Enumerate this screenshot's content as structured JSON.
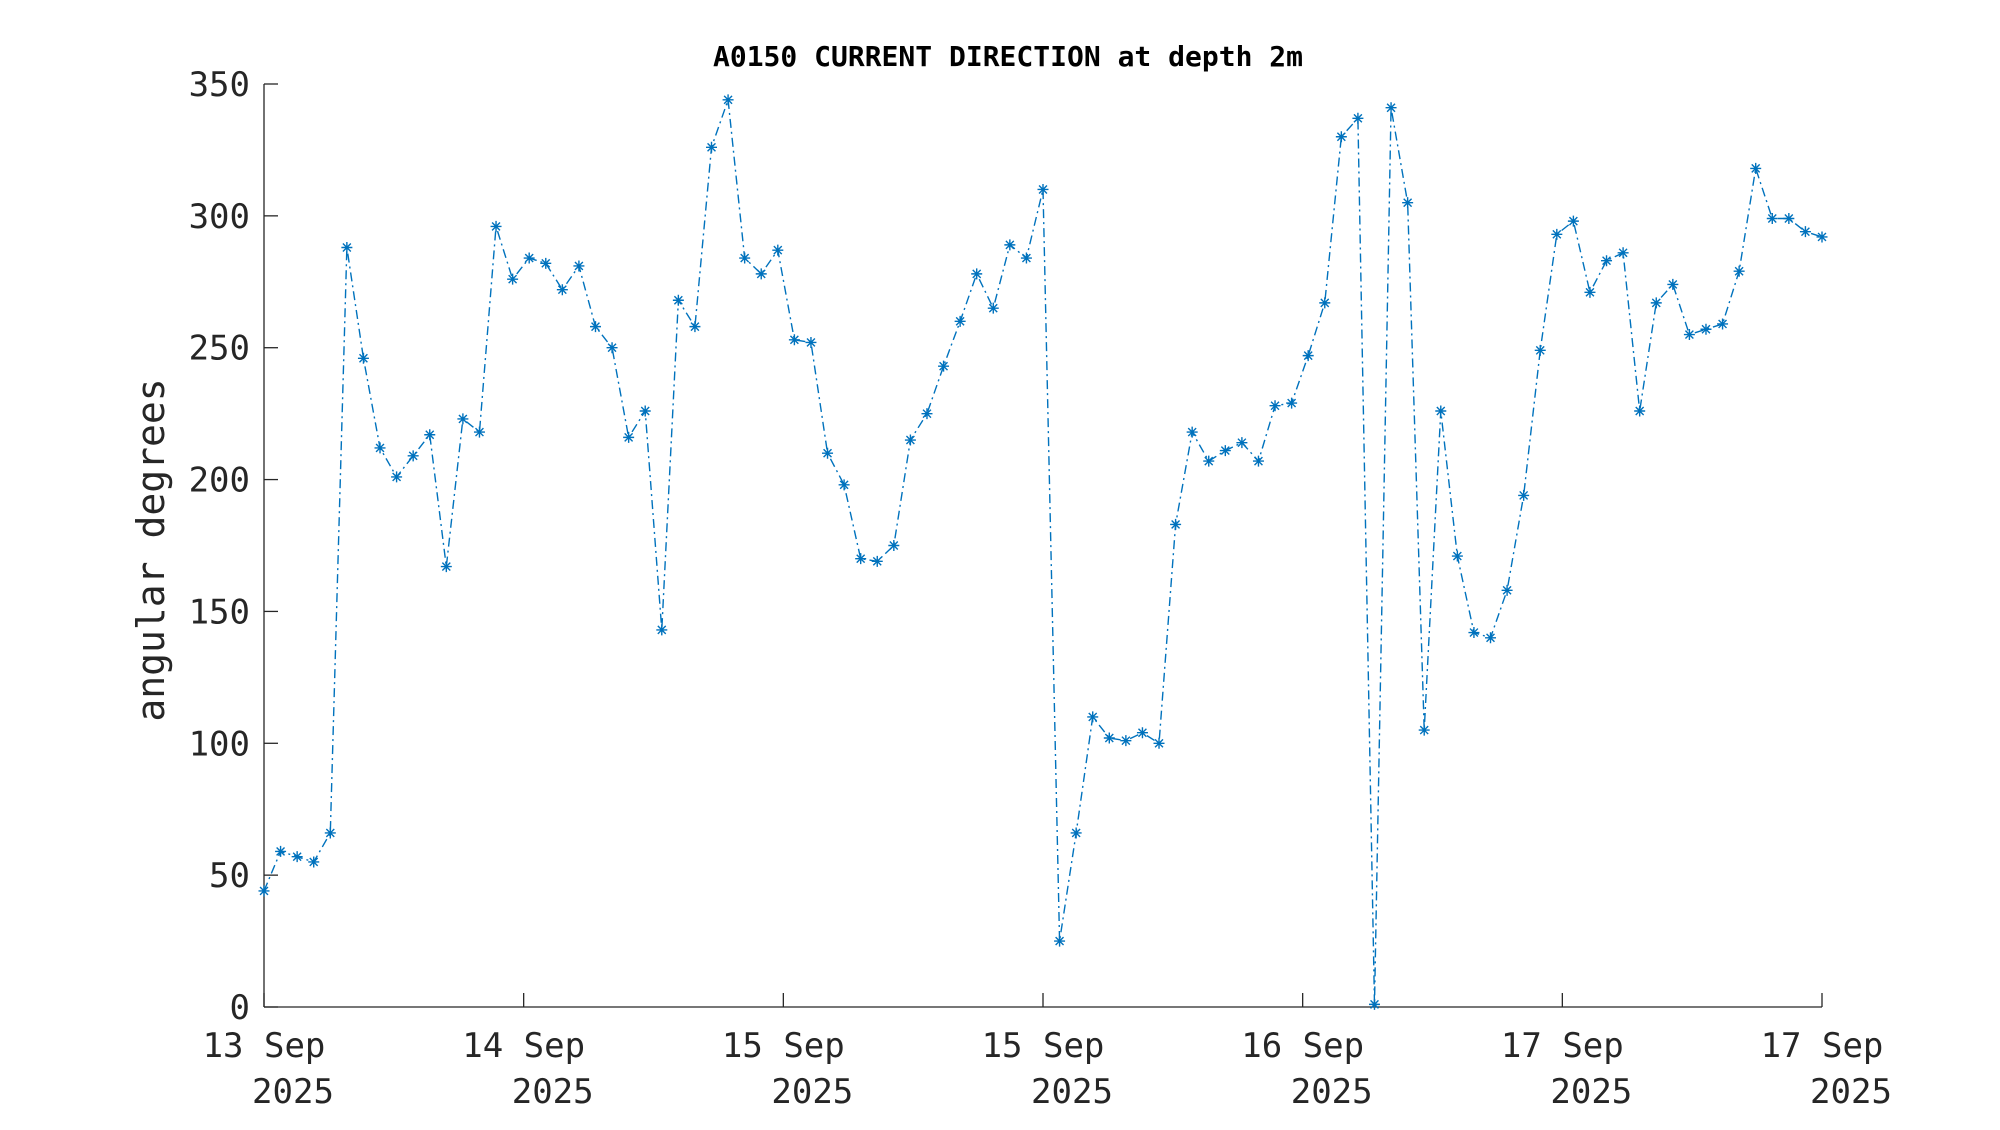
{
  "chart_data": {
    "type": "line",
    "title": "A0150 CURRENT DIRECTION at depth 2m",
    "xlabel": "",
    "ylabel": "angular degrees",
    "ylim": [
      0,
      350
    ],
    "yticks": [
      "0",
      "50",
      "100",
      "150",
      "200",
      "250",
      "300",
      "350"
    ],
    "xticks": [
      {
        "day": "13 Sep",
        "year": "2025"
      },
      {
        "day": "14 Sep",
        "year": "2025"
      },
      {
        "day": "15 Sep",
        "year": "2025"
      },
      {
        "day": "15 Sep",
        "year": "2025"
      },
      {
        "day": "16 Sep",
        "year": "2025"
      },
      {
        "day": "17 Sep",
        "year": "2025"
      },
      {
        "day": "17 Sep",
        "year": "2025"
      }
    ],
    "grid": false,
    "legend": "none",
    "marker": "asterisk",
    "line_style": "dash-dot",
    "color": "#0072BD",
    "series": [
      {
        "values": [
          44,
          59,
          57,
          55,
          66,
          288,
          246,
          212,
          201,
          209,
          217,
          167,
          223,
          218,
          296,
          276,
          284,
          282,
          272,
          281,
          258,
          250,
          216,
          226,
          143,
          268,
          258,
          326,
          344,
          284,
          278,
          287,
          253,
          252,
          210,
          198,
          170,
          169,
          175,
          215,
          225,
          243,
          260,
          278,
          265,
          289,
          284,
          310,
          25,
          66,
          110,
          102,
          101,
          104,
          100,
          183,
          218,
          207,
          211,
          214,
          207,
          228,
          229,
          247,
          267,
          330,
          337,
          1,
          341,
          305,
          105,
          226,
          171,
          142,
          140,
          158,
          194,
          249,
          293,
          298,
          271,
          283,
          286,
          226,
          267,
          274,
          255,
          257,
          259,
          279,
          318,
          299,
          299,
          294,
          292
        ]
      }
    ]
  }
}
